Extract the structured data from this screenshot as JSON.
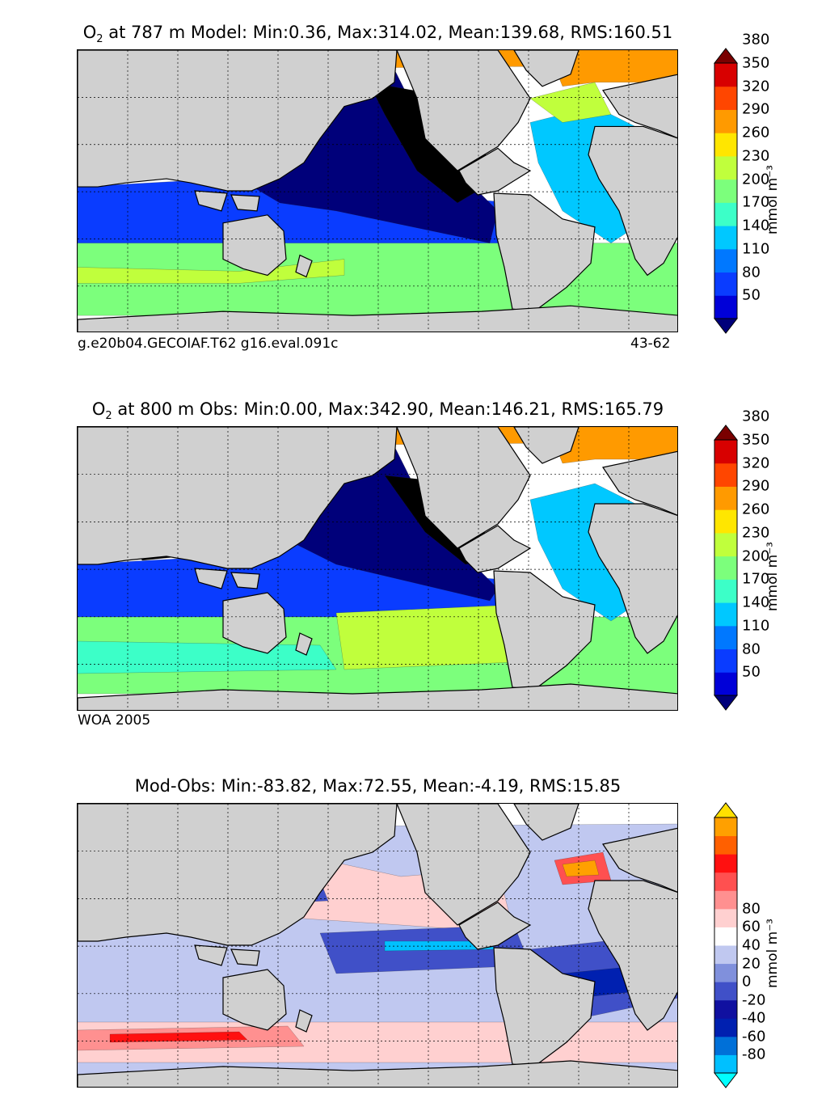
{
  "panels": [
    {
      "id": "model",
      "title_prefix": "O",
      "title_sub": "2",
      "title_rest": " at 787 m Model: Min:0.36, Max:314.02, Mean:139.68, RMS:160.51",
      "footer_left": "g.e20b04.GECOIAF.T62 g16.eval.091c",
      "footer_right": "43-62",
      "colorbar": {
        "unit": "mmol m⁻³",
        "ticks": [
          "50",
          "80",
          "110",
          "140",
          "170",
          "200",
          "230",
          "260",
          "290",
          "320",
          "350",
          "380"
        ],
        "colors": [
          "#00007a",
          "#0000d8",
          "#0a3cff",
          "#0078ff",
          "#00c8ff",
          "#3cffc8",
          "#7cff7c",
          "#c0ff3c",
          "#ffe600",
          "#ff9a00",
          "#ff4600",
          "#d80000",
          "#7a0000"
        ]
      }
    },
    {
      "id": "obs",
      "title_prefix": "O",
      "title_sub": "2",
      "title_rest": " at 800 m Obs: Min:0.00, Max:342.90, Mean:146.21, RMS:165.79",
      "footer_left": "WOA 2005",
      "footer_right": "",
      "colorbar": {
        "unit": "mmol m⁻³",
        "ticks": [
          "50",
          "80",
          "110",
          "140",
          "170",
          "200",
          "230",
          "260",
          "290",
          "320",
          "350",
          "380"
        ],
        "colors": [
          "#00007a",
          "#0000d8",
          "#0a3cff",
          "#0078ff",
          "#00c8ff",
          "#3cffc8",
          "#7cff7c",
          "#c0ff3c",
          "#ffe600",
          "#ff9a00",
          "#ff4600",
          "#d80000",
          "#7a0000"
        ]
      }
    },
    {
      "id": "diff",
      "title_prefix": "",
      "title_sub": "",
      "title_rest": "Mod-Obs: Min:-83.82, Max:72.55, Mean:-4.19, RMS:15.85",
      "footer_left": "",
      "footer_right": "",
      "colorbar": {
        "unit": "mmol m⁻³",
        "ticks": [
          "-80",
          "-60",
          "-40",
          "-20",
          "0",
          "20",
          "40",
          "60",
          "80"
        ],
        "colors": [
          "#00ffff",
          "#00c0ff",
          "#0070d8",
          "#0020b0",
          "#1010a0",
          "#4050c8",
          "#8090dc",
          "#c0c8f0",
          "#ffffff",
          "#ffd0d0",
          "#ff9090",
          "#ff5050",
          "#ff1010",
          "#ff6000",
          "#ffa000",
          "#ffe000"
        ]
      }
    }
  ]
}
